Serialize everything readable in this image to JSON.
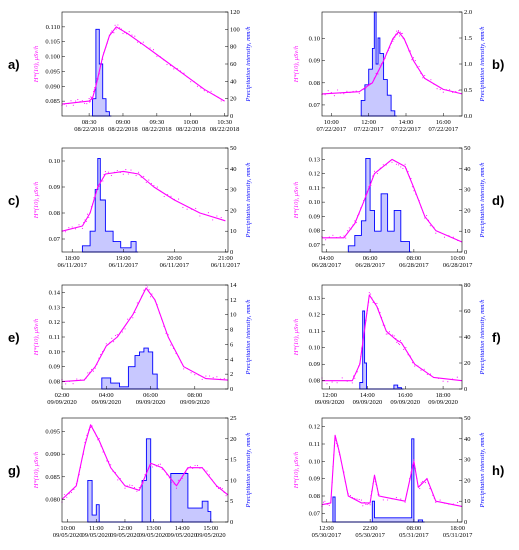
{
  "colors": {
    "dose": "#ff00ff",
    "precip": "#0000ff",
    "precip_fill": "#c8c8ff"
  },
  "chart_data": [
    {
      "type": "line",
      "panel": "a)",
      "y_left_label": "H*(10), μSv/h",
      "y_right_label": "Precipitation intensity, mm/h",
      "x_ticks": [
        {
          "t": 0,
          "time": "08:30",
          "date": "08/22/2018"
        },
        {
          "t": 0.5,
          "time": "09:00",
          "date": "08/22/2018"
        },
        {
          "t": 1,
          "time": "09:30",
          "date": "08/22/2018"
        },
        {
          "t": 1.5,
          "time": "10:00",
          "date": "08/22/2018"
        },
        {
          "t": 2,
          "time": "10:30",
          "date": "08/22/2018"
        }
      ],
      "xlim": [
        -0.4,
        2.05
      ],
      "ylim_left": [
        0.08,
        0.115
      ],
      "ylim_right": [
        0,
        120
      ],
      "y_left_ticks": [
        "0.085",
        "0.090",
        "0.095",
        "0.100",
        "0.105",
        "0.110"
      ],
      "y_left_tick_values": [
        0.085,
        0.09,
        0.095,
        0.1,
        0.105,
        0.11
      ],
      "y_right_ticks": [
        "0",
        "20",
        "40",
        "60",
        "80",
        "100",
        "120"
      ],
      "dose_rate": [
        [
          -0.4,
          0.084
        ],
        [
          -0.2,
          0.0845
        ],
        [
          0,
          0.085
        ],
        [
          0.05,
          0.086
        ],
        [
          0.1,
          0.09
        ],
        [
          0.2,
          0.1
        ],
        [
          0.3,
          0.107
        ],
        [
          0.4,
          0.11
        ],
        [
          0.55,
          0.108
        ],
        [
          0.8,
          0.104
        ],
        [
          1.1,
          0.099
        ],
        [
          1.4,
          0.094
        ],
        [
          1.7,
          0.089
        ],
        [
          2.0,
          0.085
        ]
      ],
      "precipitation": [
        [
          0.05,
          20
        ],
        [
          0.1,
          100
        ],
        [
          0.15,
          60
        ],
        [
          0.2,
          20
        ],
        [
          0.25,
          5
        ],
        [
          0.3,
          0
        ]
      ]
    },
    {
      "type": "line",
      "panel": "b)",
      "y_left_label": "H*(10), μSv/h",
      "y_right_label": "Precipitation intensity, mm/h",
      "x_ticks": [
        {
          "t": 0,
          "time": "10:00",
          "date": "07/22/2017"
        },
        {
          "t": 2,
          "time": "12:00",
          "date": "07/22/2017"
        },
        {
          "t": 4,
          "time": "14:00",
          "date": "07/22/2017"
        },
        {
          "t": 6,
          "time": "16:00",
          "date": "07/22/2017"
        }
      ],
      "xlim": [
        -0.5,
        7
      ],
      "ylim_left": [
        0.065,
        0.112
      ],
      "ylim_right": [
        0,
        2.0
      ],
      "y_left_ticks": [
        "0.07",
        "0.08",
        "0.09",
        "0.10"
      ],
      "y_left_tick_values": [
        0.07,
        0.08,
        0.09,
        0.1
      ],
      "y_right_ticks": [
        "0.0",
        "0.5",
        "1.0",
        "1.5",
        "2.0"
      ],
      "dose_rate": [
        [
          -0.5,
          0.075
        ],
        [
          0.5,
          0.0755
        ],
        [
          1.5,
          0.076
        ],
        [
          2.2,
          0.08
        ],
        [
          2.8,
          0.09
        ],
        [
          3.3,
          0.1
        ],
        [
          3.6,
          0.103
        ],
        [
          3.9,
          0.1
        ],
        [
          4.4,
          0.09
        ],
        [
          5,
          0.082
        ],
        [
          6,
          0.077
        ],
        [
          7,
          0.075
        ]
      ],
      "precipitation": [
        [
          1.6,
          0.3
        ],
        [
          1.8,
          0.6
        ],
        [
          2.0,
          0.9
        ],
        [
          2.2,
          1.3
        ],
        [
          2.3,
          2.0
        ],
        [
          2.4,
          1.0
        ],
        [
          2.5,
          1.5
        ],
        [
          2.6,
          1.2
        ],
        [
          2.8,
          0.7
        ],
        [
          3.0,
          0.4
        ],
        [
          3.2,
          0.1
        ],
        [
          3.4,
          0
        ]
      ]
    },
    {
      "type": "line",
      "panel": "c)",
      "y_left_label": "H*(10), μSv/h",
      "y_right_label": "Precipitation intensity, mm/h",
      "x_ticks": [
        {
          "t": 0,
          "time": "18:00",
          "date": "06/11/2017"
        },
        {
          "t": 1,
          "time": "19:00",
          "date": "06/11/2017"
        },
        {
          "t": 2,
          "time": "20:00",
          "date": "06/11/2017"
        },
        {
          "t": 3,
          "time": "21:00",
          "date": "06/11/2017"
        }
      ],
      "xlim": [
        -0.2,
        3.05
      ],
      "ylim_left": [
        0.065,
        0.105
      ],
      "ylim_right": [
        0,
        50
      ],
      "y_left_ticks": [
        "0.07",
        "0.08",
        "0.09",
        "0.10"
      ],
      "y_left_tick_values": [
        0.07,
        0.08,
        0.09,
        0.1
      ],
      "y_right_ticks": [
        "0",
        "10",
        "20",
        "30",
        "40",
        "50"
      ],
      "dose_rate": [
        [
          -0.2,
          0.073
        ],
        [
          0.2,
          0.075
        ],
        [
          0.35,
          0.08
        ],
        [
          0.5,
          0.09
        ],
        [
          0.65,
          0.095
        ],
        [
          1.0,
          0.096
        ],
        [
          1.3,
          0.095
        ],
        [
          1.6,
          0.09
        ],
        [
          2.0,
          0.085
        ],
        [
          2.5,
          0.08
        ],
        [
          3.0,
          0.077
        ]
      ],
      "precipitation": [
        [
          0.2,
          3
        ],
        [
          0.35,
          10
        ],
        [
          0.45,
          30
        ],
        [
          0.5,
          45
        ],
        [
          0.55,
          25
        ],
        [
          0.65,
          10
        ],
        [
          0.8,
          5
        ],
        [
          0.95,
          2
        ],
        [
          1.15,
          5
        ],
        [
          1.25,
          0
        ]
      ]
    },
    {
      "type": "line",
      "panel": "d)",
      "y_left_label": "H*(10), μSv/h",
      "y_right_label": "Precipitation intensity, mm/h",
      "x_ticks": [
        {
          "t": 0,
          "time": "04:00",
          "date": "06/28/2017"
        },
        {
          "t": 2,
          "time": "06:00",
          "date": "06/28/2017"
        },
        {
          "t": 4,
          "time": "08:00",
          "date": "06/28/2017"
        },
        {
          "t": 6,
          "time": "10:00",
          "date": "06/28/2017"
        }
      ],
      "xlim": [
        -0.2,
        6.2
      ],
      "ylim_left": [
        0.065,
        0.138
      ],
      "ylim_right": [
        0,
        50
      ],
      "y_left_ticks": [
        "0.07",
        "0.08",
        "0.09",
        "0.10",
        "0.11",
        "0.12",
        "0.13"
      ],
      "y_left_tick_values": [
        0.07,
        0.08,
        0.09,
        0.1,
        0.11,
        0.12,
        0.13
      ],
      "y_right_ticks": [
        "0",
        "10",
        "20",
        "30",
        "40",
        "50"
      ],
      "dose_rate": [
        [
          -0.2,
          0.075
        ],
        [
          0.8,
          0.075
        ],
        [
          1.3,
          0.085
        ],
        [
          1.7,
          0.1
        ],
        [
          2.2,
          0.12
        ],
        [
          3.0,
          0.13
        ],
        [
          3.6,
          0.125
        ],
        [
          4.0,
          0.11
        ],
        [
          4.5,
          0.09
        ],
        [
          5.0,
          0.08
        ],
        [
          6.2,
          0.072
        ]
      ],
      "precipitation": [
        [
          1.0,
          3
        ],
        [
          1.3,
          8
        ],
        [
          1.6,
          15
        ],
        [
          1.8,
          45
        ],
        [
          2.0,
          20
        ],
        [
          2.2,
          10
        ],
        [
          2.5,
          28
        ],
        [
          2.8,
          10
        ],
        [
          3.1,
          20
        ],
        [
          3.4,
          5
        ],
        [
          3.8,
          0
        ]
      ]
    },
    {
      "type": "line",
      "panel": "e)",
      "y_left_label": "H*(10), μSv/h",
      "y_right_label": "Precipitation intensity, mm/h",
      "x_ticks": [
        {
          "t": 0,
          "time": "02:00",
          "date": "09/09/2020"
        },
        {
          "t": 2,
          "time": "04:00",
          "date": "09/09/2020"
        },
        {
          "t": 4,
          "time": "06:00",
          "date": "09/09/2020"
        },
        {
          "t": 6,
          "time": "08:00",
          "date": "09/09/2020"
        }
      ],
      "xlim": [
        0,
        7.5
      ],
      "ylim_left": [
        0.075,
        0.145
      ],
      "ylim_right": [
        0,
        14
      ],
      "y_left_ticks": [
        "0.08",
        "0.09",
        "0.10",
        "0.11",
        "0.12",
        "0.13",
        "0.14"
      ],
      "y_left_tick_values": [
        0.08,
        0.09,
        0.1,
        0.11,
        0.12,
        0.13,
        0.14
      ],
      "y_right_ticks": [
        "0",
        "2",
        "4",
        "6",
        "8",
        "10",
        "12",
        "14"
      ],
      "dose_rate": [
        [
          0,
          0.08
        ],
        [
          1,
          0.081
        ],
        [
          1.5,
          0.09
        ],
        [
          2.0,
          0.104
        ],
        [
          2.5,
          0.11
        ],
        [
          3.2,
          0.125
        ],
        [
          3.8,
          0.143
        ],
        [
          4.2,
          0.135
        ],
        [
          4.8,
          0.11
        ],
        [
          5.5,
          0.09
        ],
        [
          6.5,
          0.082
        ],
        [
          7.5,
          0.081
        ]
      ],
      "precipitation": [
        [
          1.8,
          1.5
        ],
        [
          2.2,
          0.8
        ],
        [
          2.6,
          0.3
        ],
        [
          3.0,
          3
        ],
        [
          3.3,
          4.5
        ],
        [
          3.5,
          5
        ],
        [
          3.7,
          5.5
        ],
        [
          3.9,
          5
        ],
        [
          4.1,
          2
        ],
        [
          4.3,
          0
        ]
      ]
    },
    {
      "type": "line",
      "panel": "f)",
      "y_left_label": "H*(10), μSv/h",
      "y_right_label": "Precipitation intensity, mm/h",
      "x_ticks": [
        {
          "t": 0,
          "time": "12:00",
          "date": "09/09/2020"
        },
        {
          "t": 2,
          "time": "14:00",
          "date": "09/09/2020"
        },
        {
          "t": 4,
          "time": "16:00",
          "date": "09/09/2020"
        },
        {
          "t": 6,
          "time": "18:00",
          "date": "09/09/2020"
        }
      ],
      "xlim": [
        -0.4,
        7
      ],
      "ylim_left": [
        0.075,
        0.138
      ],
      "ylim_right": [
        0,
        80
      ],
      "y_left_ticks": [
        "0.08",
        "0.09",
        "0.10",
        "0.11",
        "0.12",
        "0.13"
      ],
      "y_left_tick_values": [
        0.08,
        0.09,
        0.1,
        0.11,
        0.12,
        0.13
      ],
      "y_right_ticks": [
        "0",
        "20",
        "40",
        "60",
        "80"
      ],
      "dose_rate": [
        [
          -0.4,
          0.08
        ],
        [
          1.2,
          0.08
        ],
        [
          1.6,
          0.09
        ],
        [
          1.9,
          0.115
        ],
        [
          2.1,
          0.132
        ],
        [
          2.5,
          0.125
        ],
        [
          3.0,
          0.11
        ],
        [
          3.5,
          0.105
        ],
        [
          3.8,
          0.103
        ],
        [
          4.5,
          0.09
        ],
        [
          5.5,
          0.082
        ],
        [
          7,
          0.08
        ]
      ],
      "precipitation": [
        [
          1.6,
          5
        ],
        [
          1.75,
          60
        ],
        [
          1.85,
          20
        ],
        [
          1.95,
          0
        ],
        [
          3.4,
          3
        ],
        [
          3.6,
          1
        ],
        [
          3.8,
          0
        ]
      ]
    },
    {
      "type": "line",
      "panel": "g)",
      "y_left_label": "H*(10), μSv/h",
      "y_right_label": "Precipitation intensity, mm/h",
      "x_ticks": [
        {
          "t": 0,
          "time": "10:00",
          "date": "09/05/2020"
        },
        {
          "t": 1,
          "time": "11:00",
          "date": "09/05/2020"
        },
        {
          "t": 2,
          "time": "12:00",
          "date": "09/05/2020"
        },
        {
          "t": 3,
          "time": "13:00",
          "date": "09/05/2020"
        },
        {
          "t": 4,
          "time": "14:00",
          "date": "09/05/2020"
        },
        {
          "t": 5,
          "time": "15:00",
          "date": "09/05/2020"
        }
      ],
      "xlim": [
        -0.2,
        5.6
      ],
      "ylim_left": [
        0.075,
        0.098
      ],
      "ylim_right": [
        0,
        30
      ],
      "y_left_ticks": [
        "0.080",
        "0.085",
        "0.090",
        "0.095"
      ],
      "y_left_tick_values": [
        0.08,
        0.085,
        0.09,
        0.095
      ],
      "y_right_ticks": [
        "0",
        "5",
        "10",
        "15",
        "20",
        "25"
      ],
      "dose_rate": [
        [
          -0.2,
          0.08
        ],
        [
          0.3,
          0.083
        ],
        [
          0.6,
          0.092
        ],
        [
          0.8,
          0.0965
        ],
        [
          1.1,
          0.093
        ],
        [
          1.5,
          0.087
        ],
        [
          2.0,
          0.083
        ],
        [
          2.5,
          0.082
        ],
        [
          2.9,
          0.088
        ],
        [
          3.3,
          0.087
        ],
        [
          3.8,
          0.083
        ],
        [
          4.2,
          0.087
        ],
        [
          4.7,
          0.087
        ],
        [
          5.2,
          0.083
        ],
        [
          5.6,
          0.081
        ]
      ],
      "precipitation": [
        [
          0.7,
          12
        ],
        [
          0.85,
          2
        ],
        [
          1.0,
          5
        ],
        [
          1.1,
          0
        ],
        [
          2.6,
          12
        ],
        [
          2.75,
          24
        ],
        [
          2.9,
          0
        ],
        [
          3.6,
          14
        ],
        [
          4.2,
          4
        ],
        [
          4.7,
          6
        ],
        [
          4.9,
          3
        ],
        [
          5.0,
          0
        ]
      ]
    },
    {
      "type": "line",
      "panel": "h)",
      "y_left_label": "H*(10), μSv/h",
      "y_right_label": "Precipitation intensity, mm/h",
      "x_ticks": [
        {
          "t": 0,
          "time": "12:00",
          "date": "05/30/2017"
        },
        {
          "t": 10,
          "time": "22:00",
          "date": "05/30/2017"
        },
        {
          "t": 20,
          "time": "08:00",
          "date": "05/31/2017"
        },
        {
          "t": 30,
          "time": "18:00",
          "date": "05/31/2017"
        }
      ],
      "xlim": [
        -1,
        31
      ],
      "ylim_left": [
        0.065,
        0.125
      ],
      "ylim_right": [
        0,
        50
      ],
      "y_left_ticks": [
        "0.07",
        "0.08",
        "0.09",
        "0.10",
        "0.11",
        "0.12"
      ],
      "y_left_tick_values": [
        0.07,
        0.08,
        0.09,
        0.1,
        0.11,
        0.12
      ],
      "y_right_ticks": [
        "0",
        "10",
        "20",
        "30",
        "40",
        "50"
      ],
      "dose_rate": [
        [
          -1,
          0.075
        ],
        [
          1,
          0.076
        ],
        [
          2,
          0.115
        ],
        [
          3,
          0.105
        ],
        [
          5,
          0.08
        ],
        [
          8,
          0.076
        ],
        [
          10,
          0.076
        ],
        [
          11,
          0.092
        ],
        [
          12,
          0.08
        ],
        [
          18,
          0.077
        ],
        [
          20,
          0.1
        ],
        [
          21,
          0.085
        ],
        [
          23,
          0.09
        ],
        [
          25,
          0.077
        ],
        [
          31,
          0.074
        ]
      ],
      "precipitation": [
        [
          1.5,
          12
        ],
        [
          2,
          0
        ],
        [
          10.5,
          10
        ],
        [
          11,
          2
        ],
        [
          19.5,
          40
        ],
        [
          20,
          0
        ],
        [
          21,
          1
        ],
        [
          22,
          0
        ]
      ]
    }
  ]
}
